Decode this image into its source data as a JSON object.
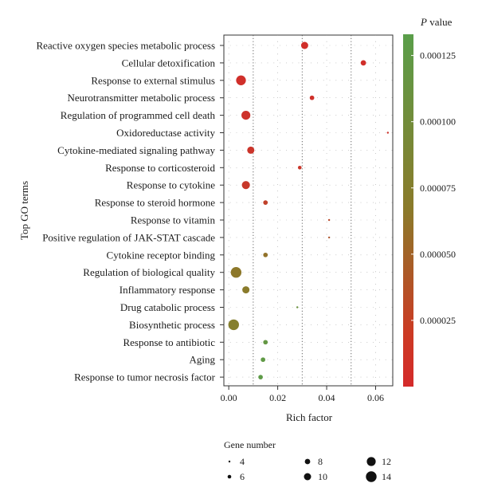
{
  "chart_data": {
    "type": "scatter",
    "xlabel": "Rich factor",
    "ylabel": "Top GO terms",
    "xlim": [
      -0.002,
      0.067
    ],
    "x_ticks": [
      0.0,
      0.02,
      0.04,
      0.06
    ],
    "x_tick_labels": [
      "0.00",
      "0.02",
      "0.04",
      "0.06"
    ],
    "grid": "dotted",
    "colorbar": {
      "title_italic": "P",
      "title_rest": " value",
      "ticks": [
        2.5e-05,
        5e-05,
        7.5e-05,
        0.0001,
        0.000125
      ],
      "tick_labels": [
        "0.000025",
        "0.000050",
        "0.000075",
        "0.000100",
        "0.000125"
      ],
      "range": [
        0,
        0.000133
      ],
      "color_low": "#d42a2a",
      "color_mid": "#8b7a2a",
      "color_high": "#5a9e4a"
    },
    "size_legend": {
      "title": "Gene number",
      "values": [
        4,
        6,
        8,
        10,
        12,
        14
      ],
      "labels": [
        "4",
        "6",
        "8",
        "10",
        "12",
        "14"
      ]
    },
    "points": [
      {
        "term": "Reactive oxygen species metabolic process",
        "rich_factor": 0.031,
        "p_value": 4e-06,
        "gene_number": 10
      },
      {
        "term": "Cellular detoxification",
        "rich_factor": 0.055,
        "p_value": 4e-06,
        "gene_number": 8
      },
      {
        "term": "Response to external stimulus",
        "rich_factor": 0.005,
        "p_value": 4e-06,
        "gene_number": 13
      },
      {
        "term": "Neurotransmitter metabolic process",
        "rich_factor": 0.034,
        "p_value": 5e-06,
        "gene_number": 7
      },
      {
        "term": "Regulation of programmed cell death",
        "rich_factor": 0.007,
        "p_value": 6e-06,
        "gene_number": 12
      },
      {
        "term": "Oxidoreductase activity",
        "rich_factor": 0.065,
        "p_value": 7e-06,
        "gene_number": 4
      },
      {
        "term": "Cytokine-mediated signaling pathway",
        "rich_factor": 0.009,
        "p_value": 8e-06,
        "gene_number": 10
      },
      {
        "term": "Response to corticosteroid",
        "rich_factor": 0.029,
        "p_value": 1e-05,
        "gene_number": 6
      },
      {
        "term": "Response to cytokine",
        "rich_factor": 0.007,
        "p_value": 1.2e-05,
        "gene_number": 11
      },
      {
        "term": "Response to steroid hormone",
        "rich_factor": 0.015,
        "p_value": 1.8e-05,
        "gene_number": 7
      },
      {
        "term": "Response to vitamin",
        "rich_factor": 0.041,
        "p_value": 2.5e-05,
        "gene_number": 4
      },
      {
        "term": "Positive regulation of JAK-STAT cascade",
        "rich_factor": 0.041,
        "p_value": 3.5e-05,
        "gene_number": 4
      },
      {
        "term": "Cytokine receptor binding",
        "rich_factor": 0.015,
        "p_value": 6e-05,
        "gene_number": 7
      },
      {
        "term": "Regulation of biological quality",
        "rich_factor": 0.003,
        "p_value": 6.5e-05,
        "gene_number": 14
      },
      {
        "term": "Inflammatory response",
        "rich_factor": 0.007,
        "p_value": 6.8e-05,
        "gene_number": 10
      },
      {
        "term": "Drug catabolic process",
        "rich_factor": 0.028,
        "p_value": 0.00011,
        "gene_number": 4
      },
      {
        "term": "Biosynthetic process",
        "rich_factor": 0.002,
        "p_value": 7.5e-05,
        "gene_number": 14
      },
      {
        "term": "Response to antibiotic",
        "rich_factor": 0.015,
        "p_value": 0.00012,
        "gene_number": 7
      },
      {
        "term": "Aging",
        "rich_factor": 0.014,
        "p_value": 0.000125,
        "gene_number": 7
      },
      {
        "term": "Response to tumor necrosis factor",
        "rich_factor": 0.013,
        "p_value": 0.000128,
        "gene_number": 7
      }
    ]
  }
}
